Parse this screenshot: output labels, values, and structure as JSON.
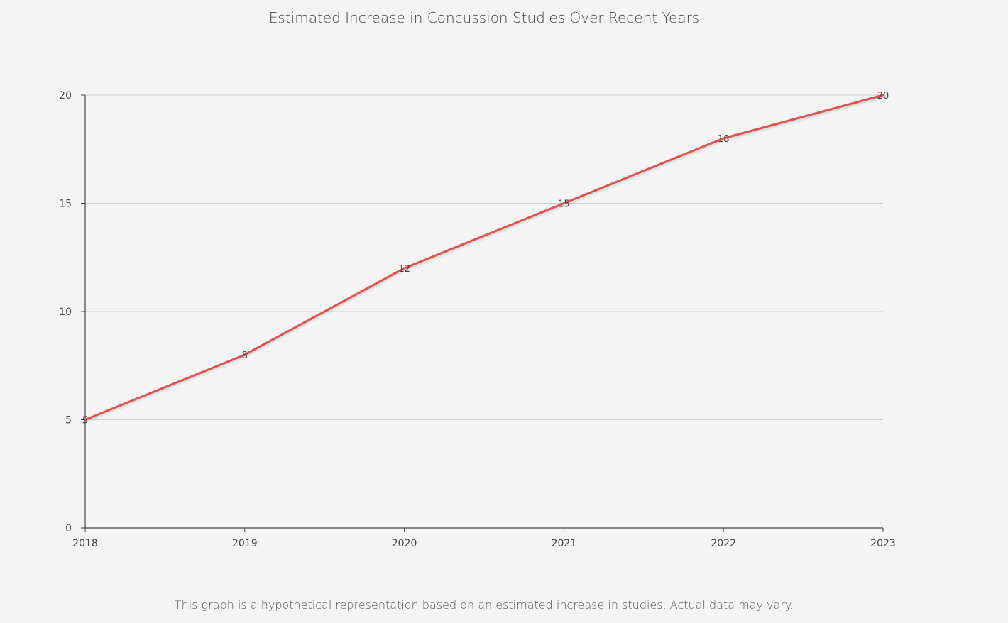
{
  "chart_data": {
    "type": "line",
    "title": "Estimated Increase in Concussion Studies Over Recent Years",
    "xlabel": "",
    "ylabel": "",
    "categories": [
      "2018",
      "2019",
      "2020",
      "2021",
      "2022",
      "2023"
    ],
    "series": [
      {
        "values": [
          5,
          8,
          12,
          15,
          18,
          20
        ],
        "color": "#d9534f"
      }
    ],
    "ylim": [
      0,
      20
    ],
    "yticks": [
      0,
      5,
      10,
      15,
      20
    ],
    "grid": true,
    "data_labels": true
  },
  "caption": "This graph is a hypothetical representation based on an estimated increase in studies. Actual data may vary."
}
